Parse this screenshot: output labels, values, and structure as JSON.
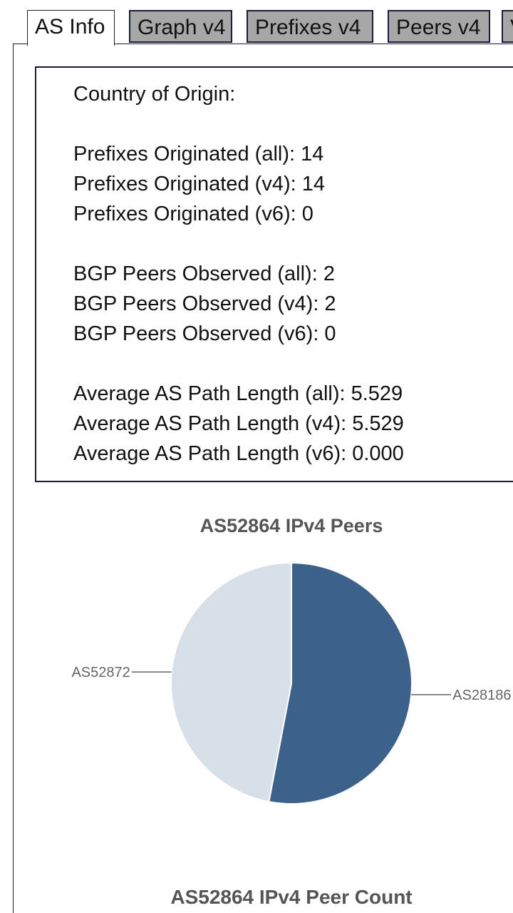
{
  "tabs": [
    {
      "label": "AS Info",
      "active": true
    },
    {
      "label": "Graph v4",
      "active": false
    },
    {
      "label": "Prefixes v4",
      "active": false
    },
    {
      "label": "Peers v4",
      "active": false
    },
    {
      "label": "V",
      "active": false
    }
  ],
  "as_info": {
    "country": "Country of Origin:",
    "prefixes_all": "Prefixes Originated (all): 14",
    "prefixes_v4": "Prefixes Originated (v4): 14",
    "prefixes_v6": "Prefixes Originated (v6): 0",
    "peers_all": "BGP Peers Observed (all): 2",
    "peers_v4": "BGP Peers Observed (v4): 2",
    "peers_v6": "BGP Peers Observed (v6): 0",
    "path_all": "Average AS Path Length (all): 5.529",
    "path_v4": "Average AS Path Length (v4): 5.529",
    "path_v6": "Average AS Path Length (v6): 0.000"
  },
  "chart_data": [
    {
      "type": "pie",
      "title": "AS52864 IPv4 Peers",
      "slices": [
        {
          "label": "AS28186",
          "value": 53,
          "color": "#3c628c"
        },
        {
          "label": "AS52872",
          "value": 47,
          "color": "#d7dfe8"
        }
      ]
    },
    {
      "type": "bar",
      "title": "AS52864 IPv4 Peer Count"
    }
  ],
  "colors": {
    "tab_inactive_bg": "#a7a7a7",
    "border": "#1a1a3a",
    "slice_dark": "#3c628c",
    "slice_light": "#d7dfe8",
    "chart_title": "#555555"
  }
}
